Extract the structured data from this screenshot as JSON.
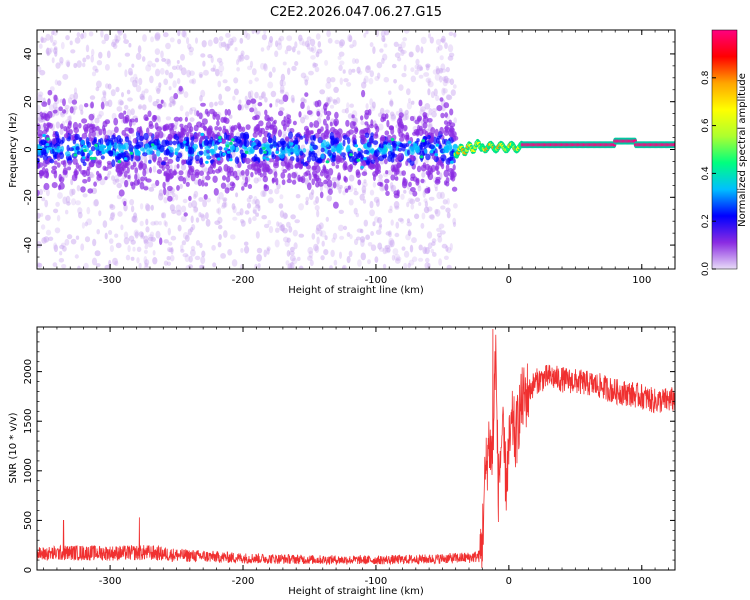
{
  "title": "C2E2.2026.047.06.27.G15",
  "chart_data": [
    {
      "type": "heatmap",
      "xlabel": "Height of straight line (km)",
      "ylabel": "Frequency (Hz)",
      "xlim": [
        -355,
        125
      ],
      "ylim": [
        -50,
        50
      ],
      "xticks": [
        -300,
        -200,
        -100,
        0,
        100
      ],
      "yticks": [
        -40,
        -20,
        0,
        20,
        40
      ],
      "colorbar": {
        "label": "Normalized spectral amplitude",
        "range": [
          0,
          1
        ],
        "ticks": [
          0.0,
          0.2,
          0.4,
          0.6,
          0.8
        ],
        "colors": [
          "#e8dcf7",
          "#8a2be2",
          "#0000ff",
          "#00bfff",
          "#00ff7f",
          "#adff2f",
          "#ffff00",
          "#ffa500",
          "#ff0000",
          "#ff0080"
        ]
      },
      "regions": [
        {
          "x_range": [
            -355,
            -40
          ],
          "center_freq": 0,
          "spread_hz": 50,
          "dense_spread_hz": 8,
          "typical_amplitude": 0.2
        },
        {
          "x_range": [
            -40,
            125
          ],
          "center_freq": 2,
          "trace_width_hz": 3,
          "typical_amplitude": 0.95
        }
      ]
    },
    {
      "type": "line",
      "xlabel": "Height of straight line (km)",
      "ylabel": "SNR (10 * v/v)",
      "xlim": [
        -355,
        125
      ],
      "ylim": [
        0,
        2450
      ],
      "xticks": [
        -300,
        -200,
        -100,
        0,
        100
      ],
      "yticks": [
        0,
        500,
        1000,
        1500,
        2000
      ],
      "color": "#f03030",
      "series": [
        {
          "name": "SNR",
          "x": [
            -355,
            -330,
            -300,
            -270,
            -250,
            -200,
            -150,
            -100,
            -60,
            -30,
            -22,
            -20,
            -18,
            -15,
            -12,
            -10,
            -8,
            -5,
            -2,
            0,
            3,
            5,
            8,
            10,
            15,
            20,
            30,
            40,
            50,
            60,
            70,
            80,
            90,
            100,
            110,
            125
          ],
          "y": [
            160,
            175,
            170,
            175,
            150,
            120,
            105,
            100,
            110,
            125,
            140,
            300,
            900,
            1300,
            1100,
            2300,
            800,
            1400,
            900,
            1200,
            1500,
            1300,
            1600,
            1700,
            1800,
            1900,
            1950,
            1920,
            1900,
            1880,
            1850,
            1800,
            1780,
            1750,
            1700,
            1720
          ]
        }
      ],
      "spikes": [
        {
          "x": -335,
          "y": 500
        },
        {
          "x": -278,
          "y": 530
        },
        {
          "x": -12,
          "y": 2430
        }
      ]
    }
  ]
}
